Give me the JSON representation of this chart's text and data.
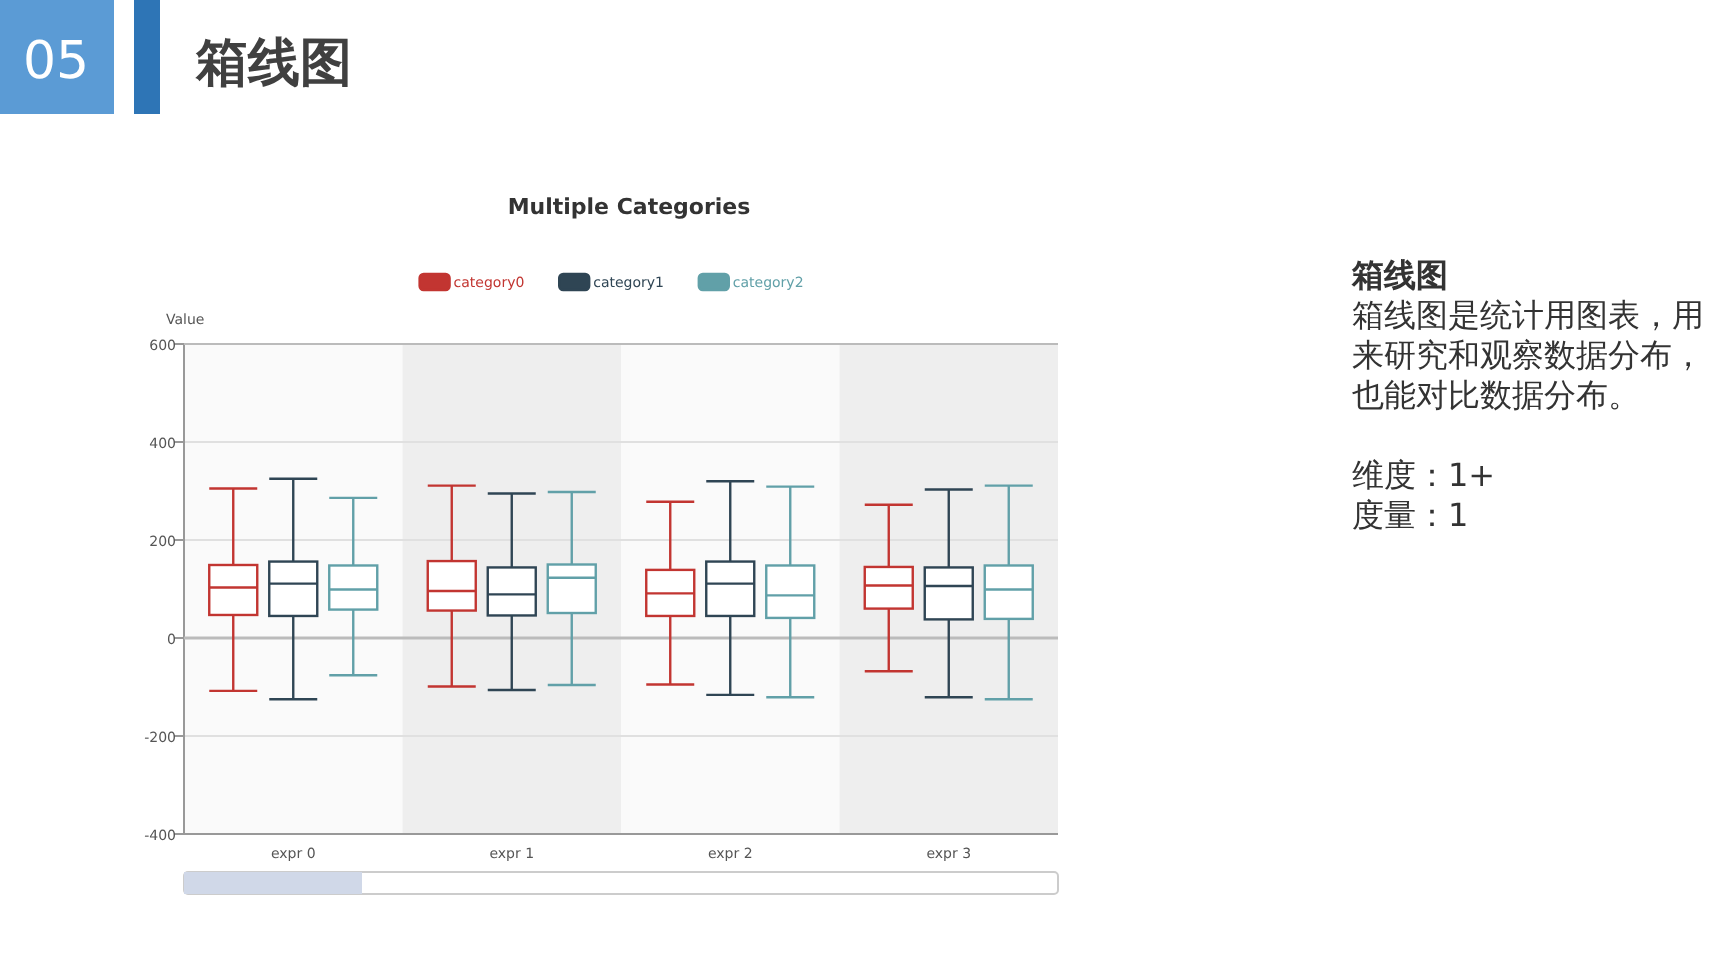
{
  "chart_data": {
    "type": "box",
    "title": "Multiple Categories",
    "ylabel": "Value",
    "categories": [
      "expr 0",
      "expr 1",
      "expr 2",
      "expr 3"
    ],
    "series": [
      {
        "name": "category0",
        "color": "#c23531",
        "boxes": [
          {
            "low": -108,
            "q1": 47,
            "median": 103,
            "q3": 149,
            "high": 305
          },
          {
            "low": -99,
            "q1": 56,
            "median": 96,
            "q3": 157,
            "high": 311
          },
          {
            "low": -95,
            "q1": 45,
            "median": 91,
            "q3": 139,
            "high": 278
          },
          {
            "low": -68,
            "q1": 60,
            "median": 107,
            "q3": 145,
            "high": 272
          }
        ]
      },
      {
        "name": "category1",
        "color": "#2f4554",
        "boxes": [
          {
            "low": -125,
            "q1": 45,
            "median": 111,
            "q3": 156,
            "high": 325
          },
          {
            "low": -106,
            "q1": 46,
            "median": 89,
            "q3": 144,
            "high": 295
          },
          {
            "low": -116,
            "q1": 45,
            "median": 111,
            "q3": 156,
            "high": 320
          },
          {
            "low": -121,
            "q1": 38,
            "median": 106,
            "q3": 144,
            "high": 303
          }
        ]
      },
      {
        "name": "category2",
        "color": "#61a0a8",
        "boxes": [
          {
            "low": -76,
            "q1": 58,
            "median": 99,
            "q3": 148,
            "high": 286
          },
          {
            "low": -96,
            "q1": 51,
            "median": 123,
            "q3": 150,
            "high": 298
          },
          {
            "low": -121,
            "q1": 41,
            "median": 87,
            "q3": 148,
            "high": 309
          },
          {
            "low": -125,
            "q1": 39,
            "median": 99,
            "q3": 148,
            "high": 311
          }
        ]
      }
    ],
    "ylim": [
      -400,
      600
    ],
    "yticks": [
      -400,
      -200,
      0,
      200,
      400,
      600
    ],
    "grid": "y",
    "legend": "top",
    "annotations": [
      "05",
      "箱线图",
      "箱线图",
      "箱线图是统计用图表，用来研究和观察数据分布，也能对比数据分布。",
      "维度：1+",
      "度量：1"
    ]
  }
}
